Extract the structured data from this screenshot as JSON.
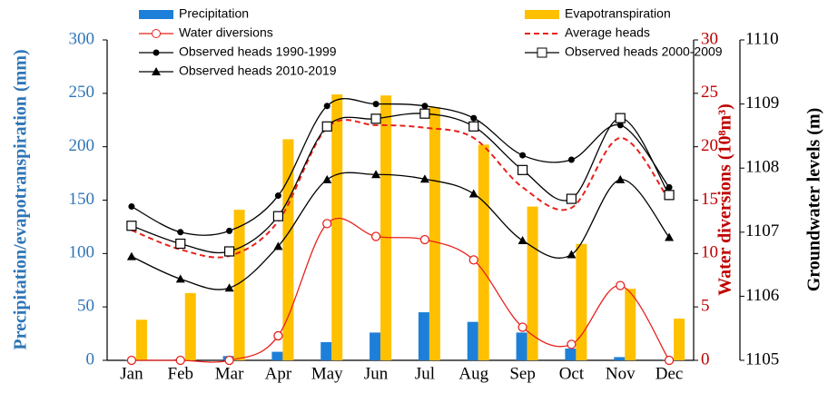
{
  "chart_data": {
    "type": "bar_line",
    "categories": [
      "Jan",
      "Feb",
      "Mar",
      "Apr",
      "May",
      "Jun",
      "Jul",
      "Aug",
      "Sep",
      "Oct",
      "Nov",
      "Dec"
    ],
    "ylabel": "Precipitation/evapotranspiration (mm)",
    "y2label": "Water diversions (10⁸m³)",
    "y3label": "Groundwater levels (m)",
    "ylim": [
      0,
      300
    ],
    "yticks": [
      0,
      50,
      100,
      150,
      200,
      250,
      300
    ],
    "y2lim": [
      0,
      30
    ],
    "y2ticks": [
      0,
      5,
      10,
      15,
      20,
      25,
      30
    ],
    "y3lim": [
      1105,
      1110
    ],
    "y3ticks": [
      1105,
      1106,
      1107,
      1108,
      1109,
      1110
    ],
    "series": [
      {
        "name": "Precipitation",
        "type": "bar",
        "axis": "y",
        "color": "#1e7fd8",
        "values": [
          0.5,
          1,
          4,
          8,
          17,
          26,
          45,
          36,
          26,
          11,
          3,
          0.5
        ]
      },
      {
        "name": "Evapotranspiration",
        "type": "bar",
        "axis": "y",
        "color": "#ffc000",
        "values": [
          38,
          63,
          141,
          207,
          249,
          248,
          237,
          202,
          144,
          109,
          67,
          39
        ]
      },
      {
        "name": "Water diversions",
        "type": "line",
        "axis": "y2",
        "color": "#e8211c",
        "marker": "open-circle",
        "dash": false,
        "values": [
          0,
          0,
          0,
          2.3,
          12.8,
          11.6,
          11.3,
          9.4,
          3.1,
          1.5,
          7.0,
          0
        ]
      },
      {
        "name": "Average heads",
        "type": "line",
        "axis": "y3",
        "color": "#e8211c",
        "marker": "none",
        "dash": true,
        "values": [
          1107.03,
          1106.73,
          1106.63,
          1107.17,
          1108.63,
          1108.67,
          1108.63,
          1108.47,
          1107.7,
          1107.38,
          1108.47,
          1107.5
        ]
      },
      {
        "name": "Observed heads 1990-1999",
        "type": "line",
        "axis": "y3",
        "color": "#000000",
        "marker": "circle",
        "dash": false,
        "values": [
          1107.4,
          1107.0,
          1107.02,
          1107.57,
          1108.97,
          1109.0,
          1108.97,
          1108.78,
          1108.2,
          1108.13,
          1108.67,
          1107.7
        ]
      },
      {
        "name": "Observed heads 2000-2009",
        "type": "line",
        "axis": "y3",
        "color": "#000000",
        "marker": "square",
        "dash": false,
        "values": [
          1107.1,
          1106.82,
          1106.7,
          1107.25,
          1108.65,
          1108.77,
          1108.85,
          1108.65,
          1107.97,
          1107.52,
          1108.78,
          1107.58
        ]
      },
      {
        "name": "Observed heads 2010-2019",
        "type": "line",
        "axis": "y3",
        "color": "#000000",
        "marker": "triangle",
        "dash": false,
        "values": [
          1106.62,
          1106.27,
          1106.13,
          1106.78,
          1107.82,
          1107.9,
          1107.83,
          1107.6,
          1106.87,
          1106.65,
          1107.82,
          1106.92
        ]
      }
    ]
  }
}
